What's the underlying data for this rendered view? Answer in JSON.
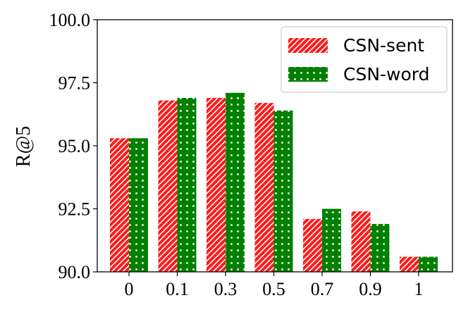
{
  "chart_data": {
    "type": "bar",
    "categories": [
      "0",
      "0.1",
      "0.3",
      "0.5",
      "0.7",
      "0.9",
      "1"
    ],
    "series": [
      {
        "name": "CSN-sent",
        "values": [
          95.3,
          96.8,
          96.9,
          96.7,
          92.1,
          92.4,
          90.6
        ],
        "color": "#ff1a1a",
        "pattern": "diagonal-hatch"
      },
      {
        "name": "CSN-word",
        "values": [
          95.3,
          96.9,
          97.1,
          96.4,
          92.5,
          91.9,
          90.6
        ],
        "color": "#008000",
        "pattern": "dots"
      }
    ],
    "title": "",
    "xlabel": "",
    "ylabel": "R@5",
    "ylim": [
      90.0,
      100.0
    ],
    "yticks": [
      "90.0",
      "92.5",
      "95.0",
      "97.5",
      "100.0"
    ],
    "legend": {
      "position": "top-right"
    },
    "grid": false
  }
}
